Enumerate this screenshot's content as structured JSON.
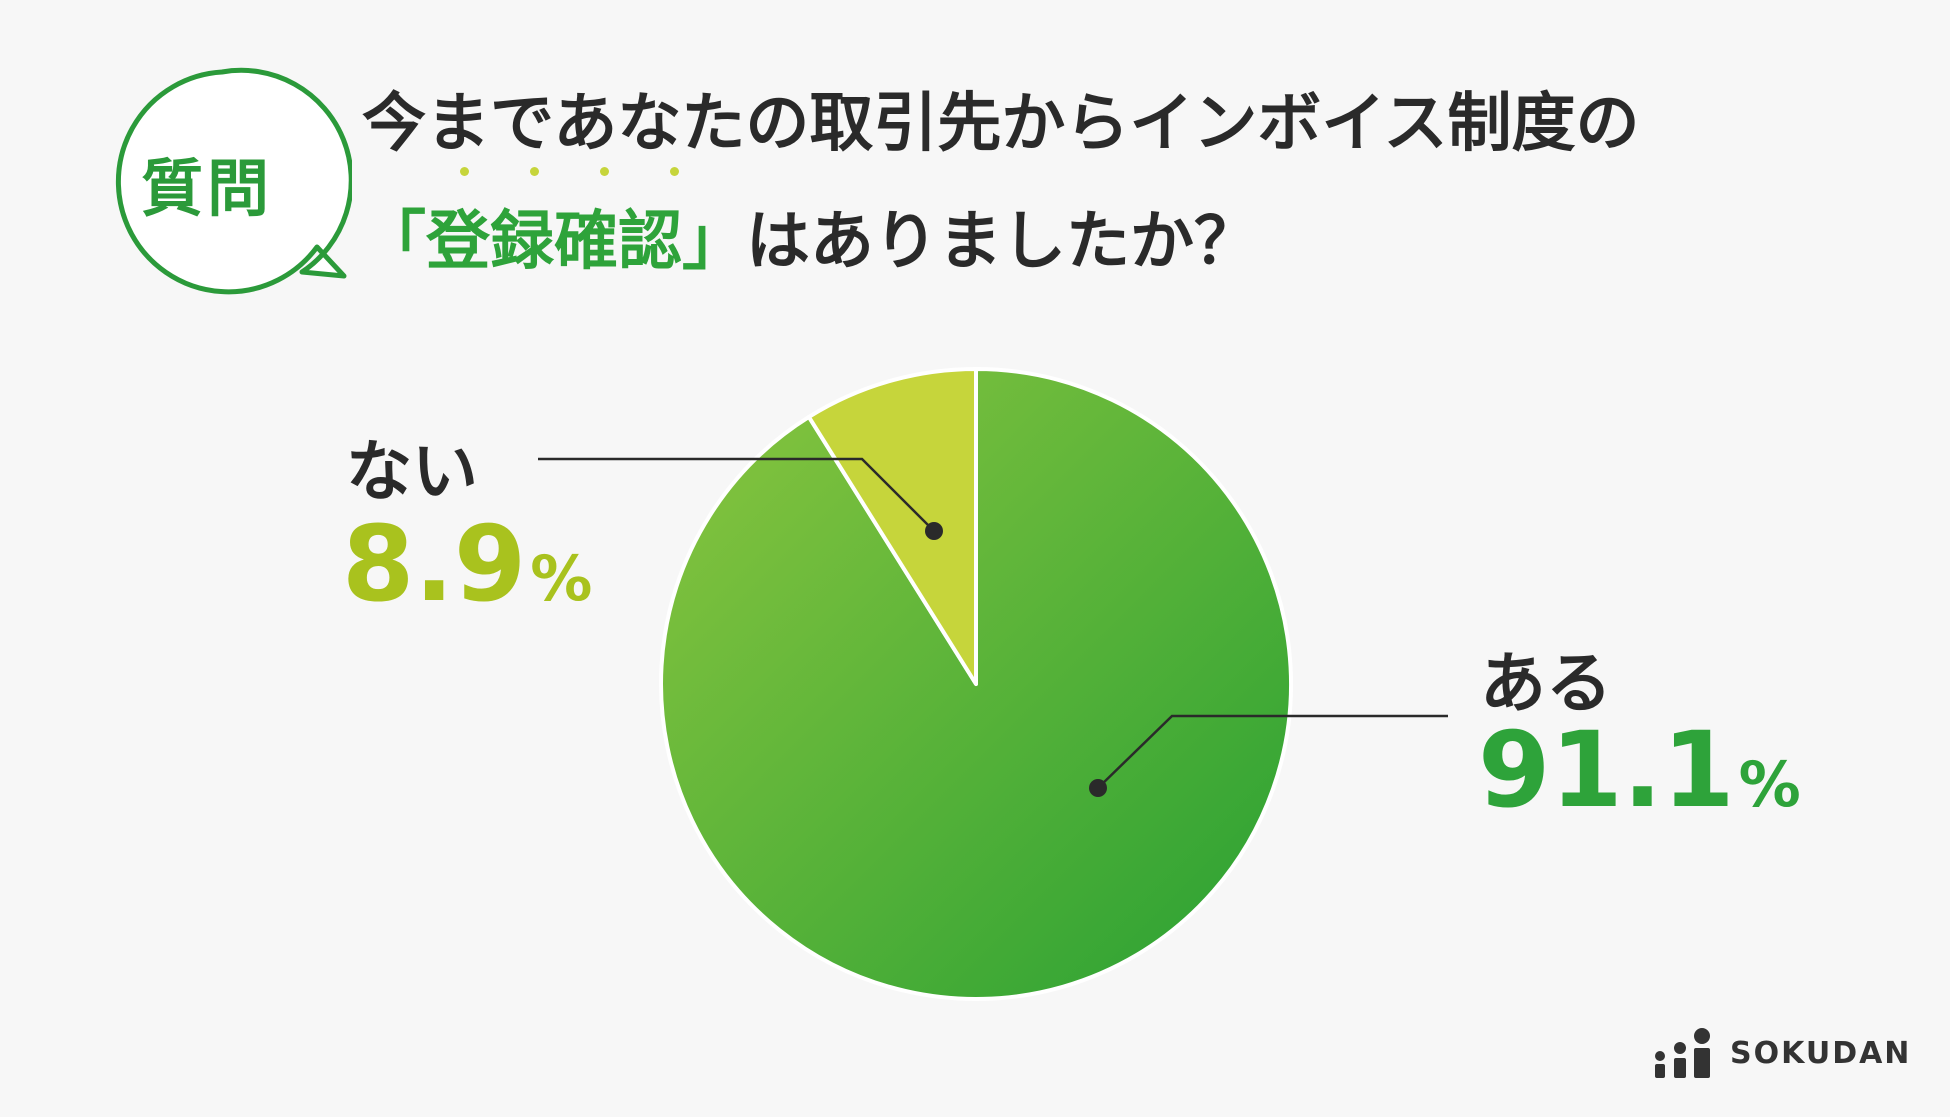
{
  "badge": {
    "label": "質問"
  },
  "title": {
    "line1": "今まであなたの取引先からインボイス制度の",
    "line2_open": "「",
    "line2_highlight": "登録確認",
    "line2_close": "」",
    "line2_rest": "はありましたか？"
  },
  "colors": {
    "primary_green": "#2ea33a",
    "light_green": "#c6d53b",
    "label_no": "#a9c21e",
    "label_yes": "#2ea33a"
  },
  "chart_data": {
    "type": "pie",
    "categories": [
      "ある",
      "ない"
    ],
    "values": [
      91.1,
      8.9
    ],
    "labels": [
      {
        "name": "ある",
        "value": "91.1",
        "unit": "%"
      },
      {
        "name": "ない",
        "value": "8.9",
        "unit": "%"
      }
    ]
  },
  "brand": {
    "name": "SOKUDAN"
  }
}
